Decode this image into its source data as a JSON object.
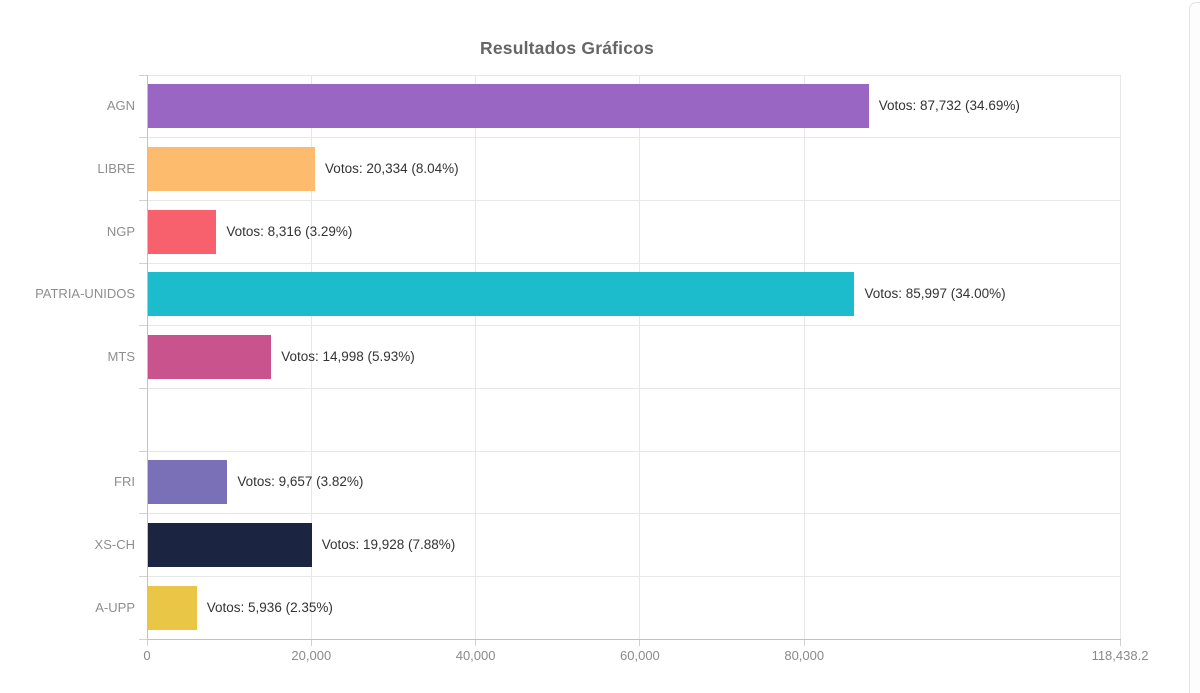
{
  "chart_data": {
    "type": "bar",
    "orientation": "horizontal",
    "title": "Resultados Gráficos",
    "value_label_prefix": "Votos:",
    "categories": [
      "AGN",
      "LIBRE",
      "NGP",
      "PATRIA-UNIDOS",
      "MTS",
      "",
      "FRI",
      "XS-CH",
      "A-UPP"
    ],
    "values": [
      87732,
      20334,
      8316,
      85997,
      14998,
      null,
      9657,
      19928,
      5936
    ],
    "percentages": [
      34.69,
      8.04,
      3.29,
      34.0,
      5.93,
      null,
      3.82,
      7.88,
      2.35
    ],
    "bar_labels": [
      "Votos: 87,732 (34.69%)",
      "Votos: 20,334 (8.04%)",
      "Votos: 8,316 (3.29%)",
      "Votos: 85,997 (34.00%)",
      "Votos: 14,998 (5.93%)",
      null,
      "Votos: 9,657 (3.82%)",
      "Votos: 19,928 (7.88%)",
      "Votos: 5,936 (2.35%)"
    ],
    "bar_colors": [
      "#9966c4",
      "#fcbb6d",
      "#f7606d",
      "#1cbccd",
      "#c9538c",
      null,
      "#7a70b8",
      "#1b2440",
      "#e9c646"
    ],
    "xlim": [
      0,
      118438.2
    ],
    "x_ticks": [
      0,
      20000,
      40000,
      60000,
      80000,
      118438.2
    ],
    "x_tick_labels": [
      "0",
      "20,000",
      "40,000",
      "60,000",
      "80,000",
      "118,438.2"
    ],
    "grid": true,
    "legend": false,
    "colors": {
      "title_text": "#666666",
      "axis_line": "#c2c2c2",
      "gridline": "#e7e7e7",
      "category_label_text": "#8e8e8e",
      "tick_label_text": "#8a8a8a",
      "value_label_text": "#333333"
    }
  }
}
